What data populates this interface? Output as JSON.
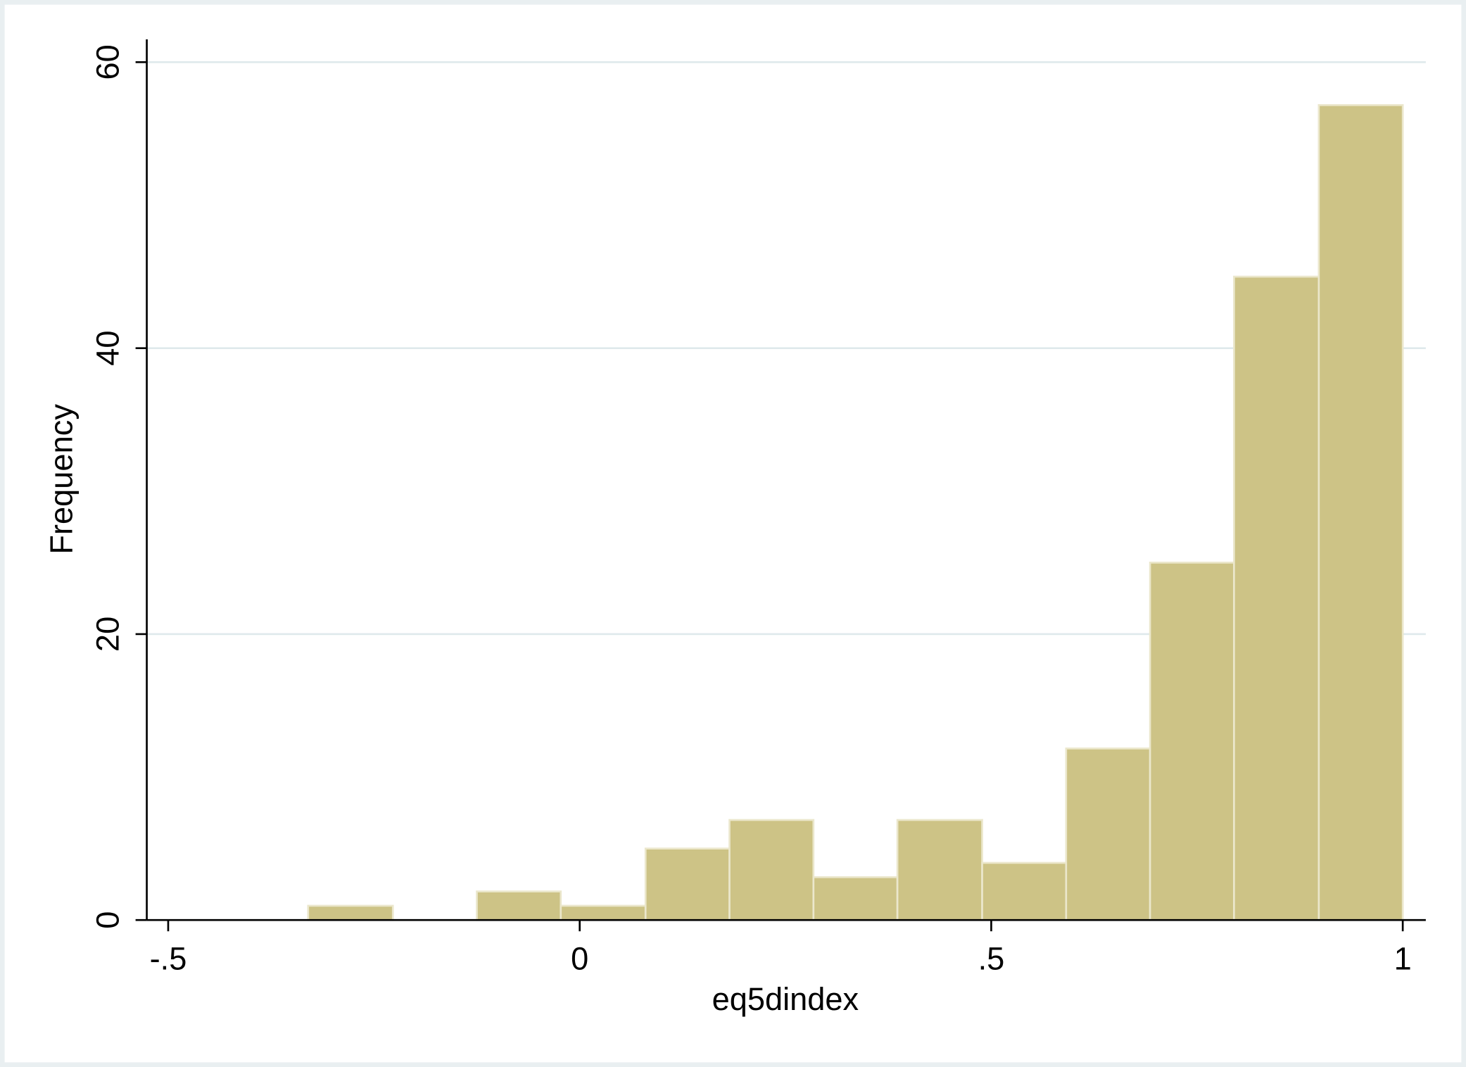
{
  "chart_data": {
    "type": "histogram",
    "x_label": "eq5dindex",
    "y_label": "Frequency",
    "bins": [
      -0.33,
      -0.227,
      -0.125,
      -0.023,
      0.08,
      0.182,
      0.284,
      0.386,
      0.489,
      0.591,
      0.693,
      0.795,
      0.898,
      1
    ],
    "values": [
      1,
      0,
      2,
      1,
      5,
      7,
      3,
      7,
      4,
      12,
      25,
      45,
      57
    ],
    "color": "#cdc386",
    "xlim": [
      -0.526,
      1.028
    ],
    "ylim": [
      0,
      61.6
    ],
    "xticks": [
      {
        "value": -0.5,
        "label": "-.5"
      },
      0,
      {
        "value": 0.5,
        "label": ".5"
      },
      1
    ],
    "yticks": [
      0,
      20,
      40,
      60
    ],
    "grid": true
  }
}
